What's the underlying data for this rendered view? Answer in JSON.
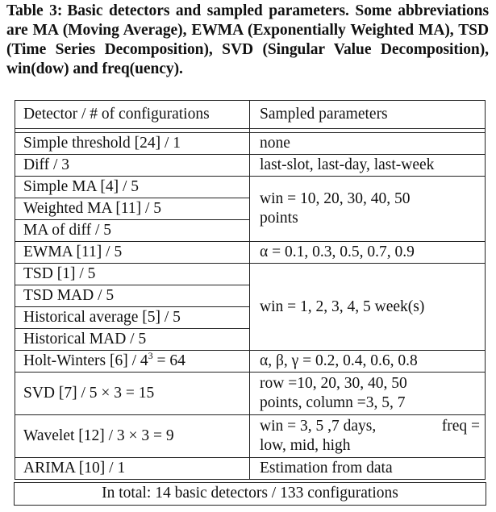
{
  "caption": {
    "label": "Table 3:",
    "text": "Basic detectors and sampled parameters. Some abbreviations are MA (Moving Average), EWMA (Exponentially Weighted MA), TSD (Time Series Decomposition), SVD (Singular Value Decomposition), win(dow) and freq(uency)."
  },
  "table": {
    "headers": [
      "Detector / # of configurations",
      "Sampled parameters"
    ],
    "rows": [
      {
        "detector": "Simple threshold [24] / 1",
        "params": "none"
      },
      {
        "detector": "Diff / 3",
        "params": "last-slot, last-day, last-week"
      },
      {
        "detector": "Simple MA [4] / 5",
        "params": "win = 10, 20, 30, 40, 50"
      },
      {
        "detector": "Weighted MA [11] / 5",
        "params": "points"
      },
      {
        "detector": "MA of diff / 5",
        "params": ""
      },
      {
        "detector": "EWMA [11] / 5",
        "params": "α = 0.1, 0.3, 0.5, 0.7, 0.9"
      },
      {
        "detector": "TSD [1] / 5",
        "params": ""
      },
      {
        "detector": "TSD MAD / 5",
        "params": ""
      },
      {
        "detector": "Historical average [5] / 5",
        "params": "win = 1, 2, 3, 4, 5 week(s)"
      },
      {
        "detector": "Historical MAD / 5",
        "params": ""
      },
      {
        "detector": "Holt-Winters [6] / 4",
        "detector_exp": "3",
        "detector_tail": " = 64",
        "params": "α, β, γ = 0.2, 0.4, 0.6, 0.8"
      },
      {
        "detector": "SVD [7] / 5 × 3 = 15",
        "params": "row =10, 20, 30, 40, 50",
        "params2": "points, column =3, 5, 7"
      },
      {
        "detector": "Wavelet [12] / 3 × 3 = 9",
        "params": "win = 3, 5 ,7 days,",
        "params_freq": "freq =",
        "params2": "low, mid, high"
      },
      {
        "detector": "ARIMA [10] / 1",
        "params": "Estimation from data"
      }
    ],
    "total": "In total: 14 basic detectors / 133 configurations"
  }
}
